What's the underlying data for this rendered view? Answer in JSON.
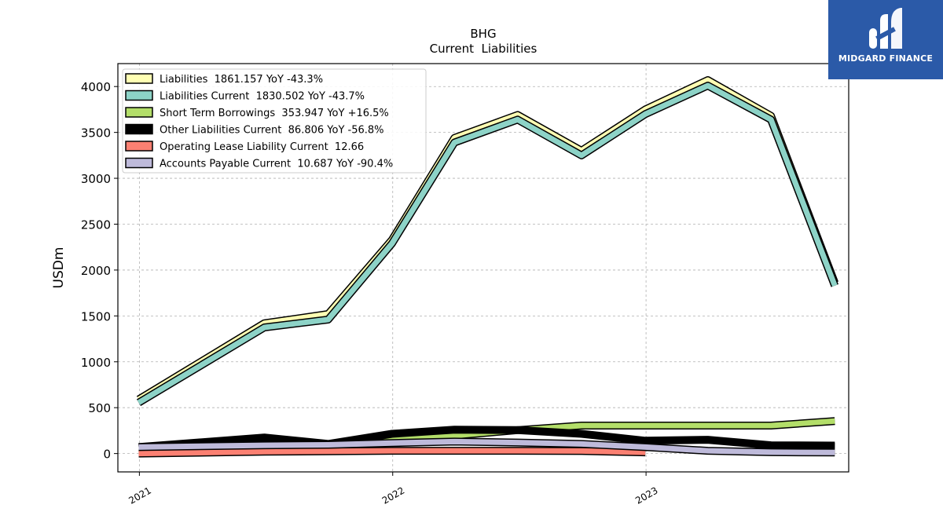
{
  "brand": {
    "name": "MIDGARD FINANCE",
    "color": "#2b5aa8"
  },
  "chart_data": {
    "type": "line",
    "title": "BHG",
    "subtitle": "Current  Liabilities",
    "ylabel": "USDm",
    "xlabel": "",
    "ylim": [
      -200,
      4250
    ],
    "xlim": [
      "2020-12-01",
      "2023-10-20"
    ],
    "yticks": [
      0,
      500,
      1000,
      1500,
      2000,
      2500,
      3000,
      3500,
      4000
    ],
    "xticks": [
      {
        "date": "2021-01-01",
        "label": "2021"
      },
      {
        "date": "2022-01-01",
        "label": "2022"
      },
      {
        "date": "2023-01-01",
        "label": "2023"
      }
    ],
    "grid": true,
    "legend_position": "top-left",
    "series": [
      {
        "name": "Liabilities  1861.157 YoY -43.3%",
        "color": "#ffffb3",
        "x": [
          "2020-12-31",
          "2021-06-30",
          "2021-09-30",
          "2021-12-31",
          "2022-03-31",
          "2022-06-30",
          "2022-09-30",
          "2022-12-31",
          "2023-03-31",
          "2023-06-30",
          "2023-09-30"
        ],
        "y": [
          590,
          1420,
          1520,
          2330,
          3440,
          3690,
          3300,
          3750,
          4070,
          3680,
          1860
        ]
      },
      {
        "name": "Liabilities Current  1830.502 YoY -43.7%",
        "color": "#8dd3c7",
        "x": [
          "2020-12-31",
          "2021-06-30",
          "2021-09-30",
          "2021-12-31",
          "2022-03-31",
          "2022-06-30",
          "2022-09-30",
          "2022-12-31",
          "2023-03-31",
          "2023-06-30",
          "2023-09-30"
        ],
        "y": [
          555,
          1375,
          1460,
          2290,
          3390,
          3640,
          3250,
          3700,
          4010,
          3640,
          1830
        ]
      },
      {
        "name": "Short Term Borrowings  353.947 YoY +16.5%",
        "color": "#b3de69",
        "x": [
          "2020-12-31",
          "2021-06-30",
          "2021-09-30",
          "2021-12-31",
          "2022-03-31",
          "2022-06-30",
          "2022-09-30",
          "2022-12-31",
          "2023-03-31",
          "2023-06-30",
          "2023-09-30"
        ],
        "y": [
          60,
          95,
          95,
          150,
          195,
          255,
          305,
          305,
          305,
          305,
          354
        ]
      },
      {
        "name": "Other Liabilities Current  86.806 YoY -56.8%",
        "color": "#000000",
        "x": [
          "2020-12-31",
          "2021-06-30",
          "2021-09-30",
          "2021-12-31",
          "2022-03-31",
          "2022-06-30",
          "2022-09-30",
          "2022-12-31",
          "2023-03-31",
          "2023-06-30",
          "2023-09-30"
        ],
        "y": [
          70,
          175,
          105,
          215,
          260,
          255,
          215,
          140,
          150,
          90,
          87
        ]
      },
      {
        "name": "Operating Lease Liability Current  12.66",
        "color": "#fb8072",
        "x": [
          "2020-12-31",
          "2021-06-30",
          "2021-09-30",
          "2021-12-31",
          "2022-03-31",
          "2022-06-30",
          "2022-09-30",
          "2022-12-31"
        ],
        "y": [
          0,
          20,
          25,
          30,
          30,
          30,
          28,
          13
        ]
      },
      {
        "name": "Accounts Payable Current  10.687 YoY -90.4%",
        "color": "#bebada",
        "x": [
          "2020-12-31",
          "2021-06-30",
          "2021-09-30",
          "2021-12-31",
          "2022-03-31",
          "2022-06-30",
          "2022-09-30",
          "2022-12-31",
          "2023-03-31",
          "2023-06-30",
          "2023-09-30"
        ],
        "y": [
          70,
          90,
          95,
          115,
          130,
          120,
          105,
          70,
          30,
          15,
          11
        ]
      }
    ]
  }
}
